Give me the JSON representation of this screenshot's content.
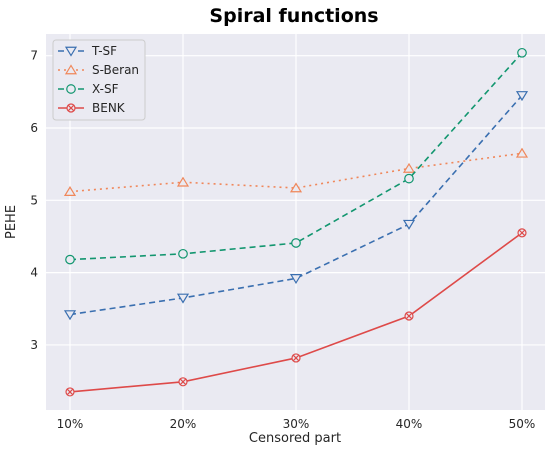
{
  "chart_data": {
    "type": "line",
    "title": "Spiral functions",
    "xlabel": "Censored part",
    "ylabel": "PEHE",
    "categories": [
      "10%",
      "20%",
      "30%",
      "40%",
      "50%"
    ],
    "y_ticks": [
      "3",
      "4",
      "5",
      "6",
      "7"
    ],
    "ylim": [
      2.1,
      7.3
    ],
    "grid": true,
    "legend_position": "top-left",
    "series": [
      {
        "name": "T-SF",
        "values": [
          3.42,
          3.65,
          3.92,
          4.67,
          6.45
        ],
        "color": "#3a6fb0",
        "marker": "triangle-down",
        "line_style": "dashed"
      },
      {
        "name": "S-Beran",
        "values": [
          5.12,
          5.25,
          5.17,
          5.44,
          5.65
        ],
        "color": "#f0875a",
        "marker": "triangle-up",
        "line_style": "dotted"
      },
      {
        "name": "X-SF",
        "values": [
          4.18,
          4.26,
          4.41,
          5.3,
          7.04
        ],
        "color": "#12966f",
        "marker": "circle",
        "line_style": "dashed"
      },
      {
        "name": "BENK",
        "values": [
          2.35,
          2.49,
          2.82,
          3.4,
          4.55
        ],
        "color": "#de4a49",
        "marker": "x-circle",
        "line_style": "solid"
      }
    ]
  }
}
